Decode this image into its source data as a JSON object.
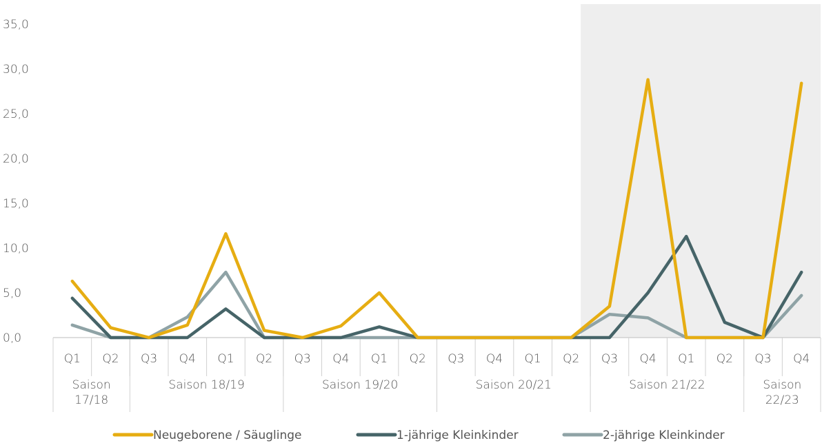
{
  "chart_data": {
    "type": "line",
    "title": "",
    "xlabel": "",
    "ylabel": "",
    "ylim": [
      0,
      35
    ],
    "yticks": [
      "0,0",
      "5,0",
      "10,0",
      "15,0",
      "20,0",
      "25,0",
      "30,0",
      "35,0"
    ],
    "ytick_values": [
      0,
      5,
      10,
      15,
      20,
      25,
      30,
      35
    ],
    "categories": [
      "Q1",
      "Q2",
      "Q3",
      "Q4",
      "Q1",
      "Q2",
      "Q3",
      "Q4",
      "Q1",
      "Q2",
      "Q3",
      "Q4",
      "Q1",
      "Q2",
      "Q3",
      "Q4",
      "Q1",
      "Q2",
      "Q3",
      "Q4"
    ],
    "seasons": [
      {
        "label": "Saison 17/18",
        "lines": [
          "Saison",
          "17/18"
        ],
        "span": 2
      },
      {
        "label": "Saison 18/19",
        "lines": [
          "Saison 18/19"
        ],
        "span": 4
      },
      {
        "label": "Saison 19/20",
        "lines": [
          "Saison 19/20"
        ],
        "span": 4
      },
      {
        "label": "Saison 20/21",
        "lines": [
          "Saison 20/21"
        ],
        "span": 4
      },
      {
        "label": "Saison 21/22",
        "lines": [
          "Saison 21/22"
        ],
        "span": 4
      },
      {
        "label": "Saison 22/23",
        "lines": [
          "Saison",
          "22/23"
        ],
        "span": 2
      }
    ],
    "shaded_region": {
      "from_index": 14,
      "to_index": 19,
      "color": "#eeeeee"
    },
    "grid": false,
    "legend_position": "bottom",
    "series": [
      {
        "name": "Neugeborene / Säuglinge",
        "color": "#e6ad12",
        "values": [
          6.3,
          1.1,
          0.0,
          1.4,
          11.6,
          0.8,
          0.0,
          1.3,
          5.0,
          0.0,
          0.0,
          0.0,
          0.0,
          0.0,
          3.5,
          28.8,
          0.0,
          0.0,
          0.0,
          28.4
        ]
      },
      {
        "name": "1-jährige Kleinkinder",
        "color": "#466468",
        "values": [
          4.4,
          0.0,
          0.0,
          0.0,
          3.2,
          0.0,
          0.0,
          0.0,
          1.2,
          0.0,
          0.0,
          0.0,
          0.0,
          0.0,
          0.0,
          5.0,
          11.3,
          1.7,
          0.0,
          7.3
        ]
      },
      {
        "name": "2-jährige Kleinkinder",
        "color": "#8fa3a6",
        "values": [
          1.4,
          0.0,
          0.0,
          2.3,
          7.3,
          0.0,
          0.0,
          0.0,
          0.0,
          0.0,
          0.0,
          0.0,
          0.0,
          0.0,
          2.6,
          2.2,
          0.0,
          0.0,
          0.0,
          4.7
        ]
      }
    ]
  }
}
